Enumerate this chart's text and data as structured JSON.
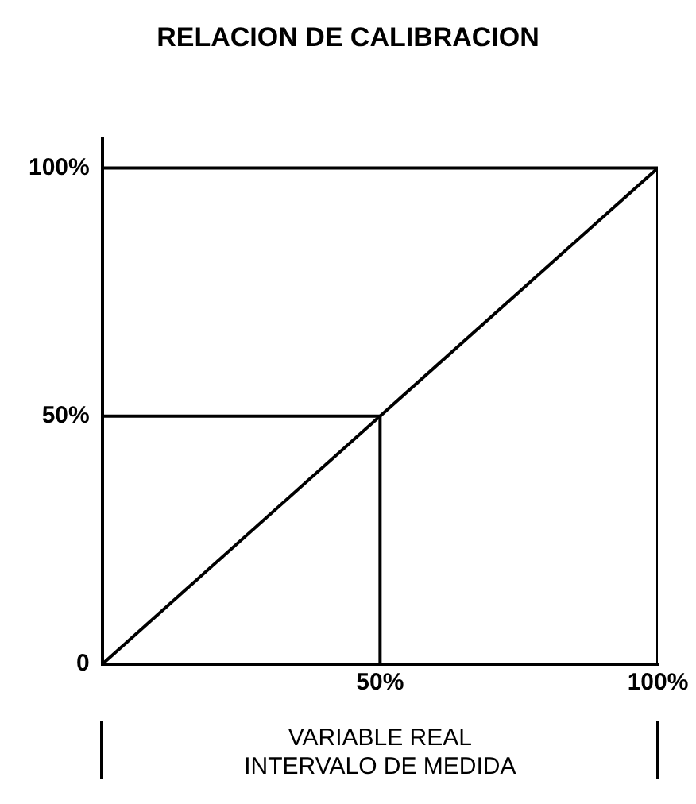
{
  "chart_data": {
    "type": "line",
    "title": "RELACION DE CALIBRACION",
    "xlabel": "VARIABLE REAL\nINTERVALO DE MEDIDA",
    "xlim": [
      0,
      100
    ],
    "ylim": [
      0,
      106
    ],
    "xticks": [
      {
        "value": 0,
        "label": null
      },
      {
        "value": 50,
        "label": "50%"
      },
      {
        "value": 100,
        "label": "100%"
      }
    ],
    "yticks": [
      {
        "value": 0,
        "label": "0"
      },
      {
        "value": 50,
        "label": "50%"
      },
      {
        "value": 100,
        "label": "100%"
      }
    ],
    "grid": false,
    "legend": false,
    "marker": "none",
    "line_style": "solid",
    "series": [
      {
        "color": "#000000",
        "x": [
          0,
          100
        ],
        "values": [
          0,
          100
        ]
      },
      {
        "color": "#000000",
        "x": [
          0,
          50,
          50
        ],
        "values": [
          50,
          50,
          0
        ]
      },
      {
        "color": "#000000",
        "x": [
          0,
          100,
          100
        ],
        "values": [
          100,
          100,
          0
        ]
      }
    ]
  }
}
